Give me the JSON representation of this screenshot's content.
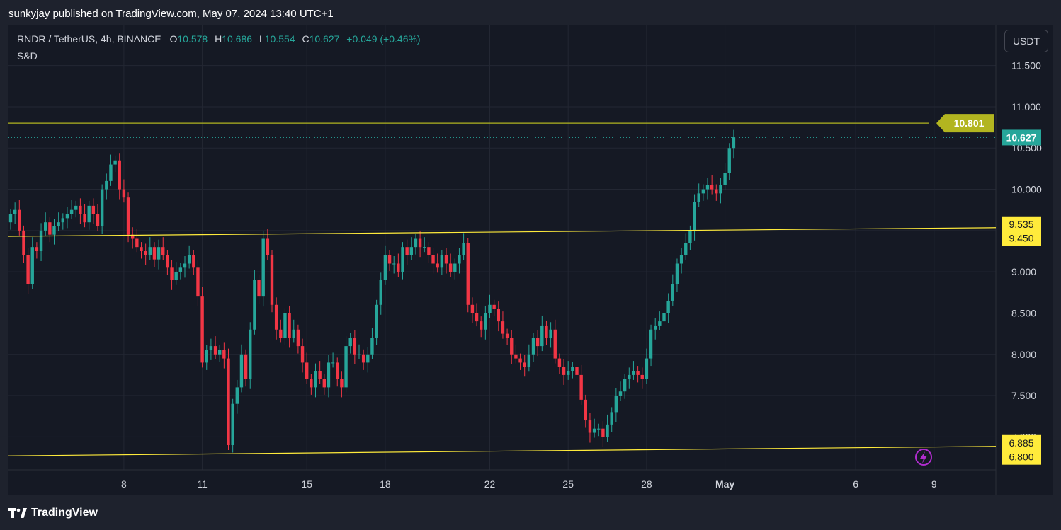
{
  "header": {
    "published_text": "sunkyjay published on TradingView.com, May 07, 2024 13:40 UTC+1"
  },
  "legend": {
    "symbol": "RNDR / TetherUS, 4h, BINANCE",
    "open_label": "O",
    "open": "10.578",
    "high_label": "H",
    "high": "10.686",
    "low_label": "L",
    "low": "10.554",
    "close_label": "C",
    "close": "10.627",
    "change": "+0.049 (+0.46%)",
    "indicator": "S&D"
  },
  "currency_button": "USDT",
  "footer": {
    "logo_text": "TradingView",
    "logo_icon": "tradingview-logo-icon"
  },
  "colors": {
    "background": "#151924",
    "up": "#26a69a",
    "down": "#f23645",
    "trendline": "#ffeb3b",
    "level_line": "#b2b520",
    "grid": "#232733",
    "text": "#d1d4dc"
  },
  "chart_data": {
    "type": "candlestick",
    "ylim": [
      6.6,
      11.9
    ],
    "y_ticks": [
      7.0,
      7.5,
      8.0,
      8.5,
      9.0,
      9.5,
      10.0,
      10.5,
      11.0,
      11.5
    ],
    "y_tick_labels": [
      "7.000",
      "7.500",
      "8.000",
      "8.500",
      "9.000",
      "9.500",
      "10.000",
      "10.500",
      "11.000",
      "11.500"
    ],
    "x_labels": [
      {
        "label": "8",
        "bar": 26
      },
      {
        "label": "11",
        "bar": 44
      },
      {
        "label": "15",
        "bar": 68
      },
      {
        "label": "18",
        "bar": 86
      },
      {
        "label": "22",
        "bar": 110
      },
      {
        "label": "25",
        "bar": 128
      },
      {
        "label": "28",
        "bar": 146
      },
      {
        "label": "May",
        "bar": 164
      },
      {
        "label": "6",
        "bar": 194
      },
      {
        "label": "9",
        "bar": 212
      }
    ],
    "closes": [
      9.7,
      9.75,
      9.5,
      9.2,
      8.85,
      9.3,
      9.25,
      9.5,
      9.6,
      9.45,
      9.55,
      9.6,
      9.65,
      9.7,
      9.75,
      9.8,
      9.7,
      9.6,
      9.8,
      9.7,
      9.55,
      10.0,
      10.1,
      10.3,
      10.35,
      10.0,
      9.9,
      9.45,
      9.4,
      9.3,
      9.25,
      9.2,
      9.3,
      9.15,
      9.3,
      9.2,
      9.05,
      8.9,
      9.0,
      9.05,
      9.1,
      9.2,
      9.05,
      8.7,
      7.9,
      8.05,
      8.1,
      8.0,
      8.05,
      7.95,
      6.9,
      7.4,
      7.6,
      8.0,
      7.7,
      8.3,
      8.9,
      8.7,
      9.4,
      9.2,
      8.6,
      8.3,
      8.2,
      8.5,
      8.2,
      8.3,
      8.1,
      7.9,
      7.7,
      7.6,
      7.8,
      7.7,
      7.6,
      7.9,
      7.9,
      7.7,
      7.6,
      8.1,
      8.2,
      8.0,
      8.0,
      7.9,
      8.0,
      8.2,
      8.6,
      8.9,
      9.2,
      9.1,
      9.1,
      9.0,
      9.3,
      9.2,
      9.3,
      9.4,
      9.3,
      9.3,
      9.2,
      9.1,
      9.05,
      9.2,
      9.1,
      9.0,
      9.1,
      9.2,
      9.35,
      8.6,
      8.5,
      8.4,
      8.3,
      8.5,
      8.6,
      8.55,
      8.4,
      8.25,
      8.2,
      8.0,
      7.95,
      7.9,
      7.85,
      8.0,
      8.2,
      8.1,
      8.35,
      8.2,
      8.3,
      7.95,
      7.85,
      7.75,
      7.8,
      7.85,
      7.75,
      7.45,
      7.2,
      7.05,
      7.1,
      7.1,
      7.0,
      7.15,
      7.3,
      7.5,
      7.55,
      7.7,
      7.75,
      7.8,
      7.75,
      7.7,
      7.95,
      8.3,
      8.35,
      8.4,
      8.5,
      8.65,
      8.85,
      9.1,
      9.2,
      9.35,
      9.5,
      9.85,
      9.95,
      10.0,
      10.05,
      10.0,
      9.95,
      10.05,
      10.2,
      10.5,
      10.63
    ],
    "price_levels": [
      {
        "label": "10.801",
        "value": 10.801,
        "style": "horizontal",
        "color": "#b2b520"
      },
      {
        "label": "10.627",
        "value": 10.627,
        "style": "current_price",
        "color": "#26a69a"
      }
    ],
    "trendlines": [
      {
        "name": "",
        "start_value": 9.43,
        "end_value": 9.535,
        "label": "9.535",
        "label_value": 9.535,
        "label2": "9.450",
        "label2_value": 9.45
      },
      {
        "name": "",
        "start_value": 6.77,
        "end_value": 6.885,
        "label": "6.885",
        "label_value": 6.885,
        "label2": "6.800",
        "label2_value": 6.8
      }
    ],
    "title": "",
    "xlabel": "",
    "ylabel": "",
    "grid": true,
    "legend": "top-left"
  }
}
